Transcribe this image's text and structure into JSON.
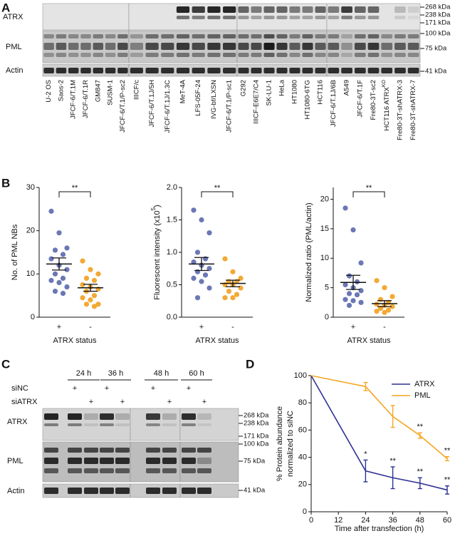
{
  "panel_a": {
    "letter": "A",
    "rows": [
      "ATRX",
      "PML",
      "Actin"
    ],
    "markers": [
      "268 kDa",
      "238 kDa",
      "171 kDa",
      "100 kDa",
      "75 kDa",
      "41 kDa"
    ],
    "lanes": [
      "U-2 OS",
      "Saos-2",
      "JFCF-6/T.1M",
      "JFCF-6/T.1R",
      "GM847",
      "SUSM-1",
      "JFCF-6/T.1/P-sc2",
      "IIICF/c",
      "JFCF-6/T.1J/5H",
      "JFCF-6/T.1J/1.3C",
      "MeT-4A",
      "LFS-05F-24",
      "IVG-bf/LXSN",
      "JFCF-6/T.1/P-sc1",
      "G292",
      "IIICF-E6E7/C4",
      "SK-LU-1",
      "HeLa",
      "HT1080",
      "HT1080-6TG",
      "HCT116",
      "JFCF-6/T.1J/6B",
      "A549",
      "JFCF-6/T.1F",
      "Fre80-3T-sc2",
      {
        "text": "HCT116 ATRX",
        "sup": "KO"
      },
      "Fre80-3T-shATRX-3",
      "Fre80-3T-shATRX-7"
    ]
  },
  "panel_b": {
    "letter": "B"
  },
  "panel_c": {
    "letter": "C",
    "timepoints": [
      "24 h",
      "36 h",
      "48 h",
      "60 h"
    ],
    "treatments": [
      {
        "label": "siNC",
        "signs": [
          "+",
          "+",
          "+",
          "+"
        ]
      },
      {
        "label": "siATRX",
        "signs": [
          "+",
          "+",
          "+",
          "+"
        ]
      }
    ],
    "rows": [
      "ATRX",
      "PML",
      "Actin"
    ],
    "markers": [
      "268 kDa",
      "238 kDa",
      "171 kDa",
      "100 kDa",
      "75 kDa",
      "41 kDa"
    ]
  },
  "panel_d": {
    "letter": "D"
  },
  "chart_data": [
    {
      "type": "dot",
      "ylabel": "No. of PML NBs",
      "xlabel": "ATRX status",
      "categories": [
        "+",
        "-"
      ],
      "significance": "**",
      "ylim": [
        0,
        30
      ],
      "yticks": [
        0,
        10,
        20,
        30
      ],
      "groups": [
        {
          "color": "#6b77b5",
          "values": [
            24.5,
            19.5,
            16,
            15.5,
            14.5,
            13.5,
            12,
            11,
            10,
            9,
            8.5,
            8,
            7,
            6,
            5.5
          ],
          "mean": 12.3,
          "sem": 1.4
        },
        {
          "color": "#f2a935",
          "values": [
            13,
            11,
            10,
            9,
            8.5,
            7.5,
            7,
            6.5,
            6,
            5,
            4.5,
            4,
            3,
            3,
            2.5
          ],
          "mean": 6.8,
          "sem": 0.8
        }
      ]
    },
    {
      "type": "dot",
      "ylabel": "Fluorescent intensity (x10",
      "ylabel_sup": "5",
      "ylabel_end": ")",
      "xlabel": "ATRX status",
      "categories": [
        "+",
        "-"
      ],
      "significance": "**",
      "ylim": [
        0,
        2
      ],
      "yticks": [
        {
          "value": 0,
          "label": "0.0"
        },
        0.5,
        {
          "value": 1,
          "label": "1.0"
        },
        1.5,
        {
          "value": 2,
          "label": "2.0"
        }
      ],
      "groups": [
        {
          "color": "#6b77b5",
          "values": [
            1.65,
            1.5,
            1.3,
            1.0,
            0.9,
            0.85,
            0.8,
            0.75,
            0.7,
            0.65,
            0.6,
            0.55,
            0.45,
            0.3
          ],
          "mean": 0.82,
          "sem": 0.1
        },
        {
          "color": "#f2a935",
          "values": [
            0.9,
            0.7,
            0.6,
            0.55,
            0.55,
            0.5,
            0.5,
            0.45,
            0.4,
            0.35,
            0.3,
            0.3
          ],
          "mean": 0.52,
          "sem": 0.05
        }
      ]
    },
    {
      "type": "dot",
      "ylabel": "Normalized ratio (PML/actin)",
      "xlabel": "ATRX status",
      "categories": [
        "+",
        "-"
      ],
      "significance": "**",
      "ylim": [
        0,
        22
      ],
      "yticks": [
        0,
        5,
        10,
        15,
        20
      ],
      "groups": [
        {
          "color": "#6b77b5",
          "values": [
            18.5,
            14.8,
            9.2,
            7,
            6,
            5.5,
            5,
            4.5,
            4,
            3.8,
            3,
            2.8,
            2.5,
            2
          ],
          "mean": 5.9,
          "sem": 1.2
        },
        {
          "color": "#f2a935",
          "values": [
            6.2,
            5,
            3.5,
            3,
            2.5,
            2.2,
            2,
            1.8,
            1.5,
            1.2,
            1,
            0.8
          ],
          "mean": 2.3,
          "sem": 0.5
        }
      ]
    },
    {
      "type": "line",
      "ylabel": [
        "% Protein abundance",
        "normalized to siNC"
      ],
      "xlabel": "Time after transfection (h)",
      "x": [
        0,
        24,
        36,
        48,
        60
      ],
      "xlim": [
        0,
        60
      ],
      "xticks": [
        0,
        12,
        24,
        36,
        48,
        60
      ],
      "ylim": [
        0,
        100
      ],
      "yticks": [
        0,
        20,
        40,
        60,
        80,
        100
      ],
      "legend": "top right",
      "series": [
        {
          "name": "ATRX",
          "color": "#2e3192",
          "values": [
            100,
            30,
            25,
            21,
            16
          ],
          "errors": [
            null,
            8,
            8,
            4,
            3
          ],
          "significance": [
            null,
            "*",
            "**",
            "**",
            "**"
          ]
        },
        {
          "name": "PML",
          "color": "#f5a623",
          "values": [
            100,
            92,
            70,
            56,
            39
          ],
          "errors": [
            null,
            3,
            8,
            2,
            1.5
          ],
          "significance": [
            null,
            null,
            null,
            "**",
            "**"
          ]
        }
      ]
    }
  ]
}
